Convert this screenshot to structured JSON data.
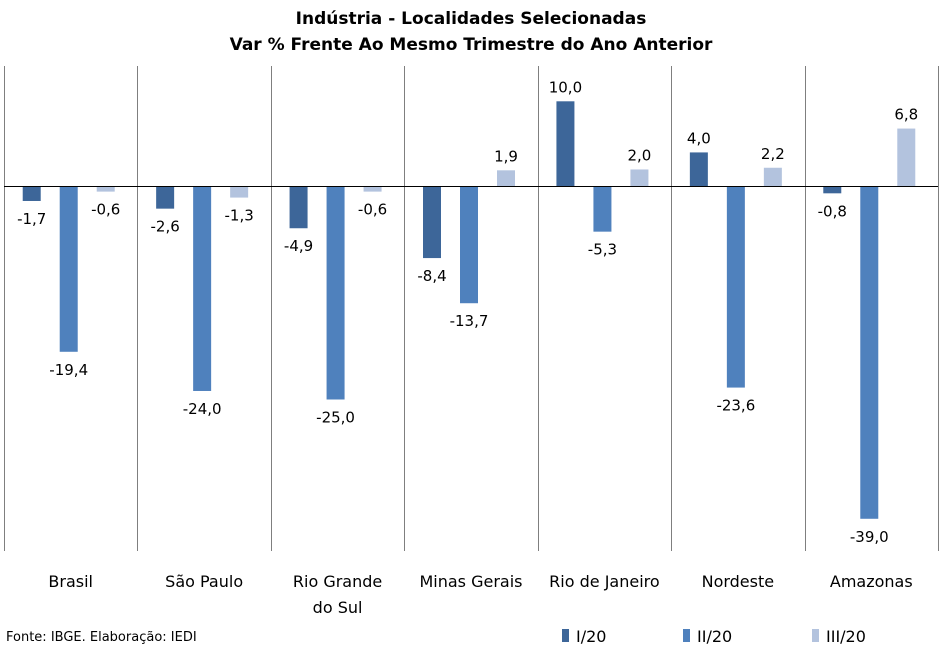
{
  "chart_data": {
    "type": "bar",
    "title": "Indústria - Localidades Selecionadas",
    "subtitle": "Var % Frente Ao Mesmo Trimestre do Ano Anterior",
    "categories": [
      "Brasil",
      "São Paulo",
      "Rio Grande do Sul",
      "Minas Gerais",
      "Rio de Janeiro",
      "Nordeste",
      "Amazonas"
    ],
    "category_lines": [
      [
        "Brasil"
      ],
      [
        "São Paulo"
      ],
      [
        "Rio Grande",
        "do Sul"
      ],
      [
        "Minas Gerais"
      ],
      [
        "Rio de Janeiro"
      ],
      [
        "Nordeste"
      ],
      [
        "Amazonas"
      ]
    ],
    "series": [
      {
        "name": "I/20",
        "color": "#3d6699",
        "values": [
          -1.7,
          -2.6,
          -4.9,
          -8.4,
          10.0,
          4.0,
          -0.8
        ],
        "labels": [
          "-1,7",
          "-2,6",
          "-4,9",
          "-8,4",
          "10,0",
          "4,0",
          "-0,8"
        ]
      },
      {
        "name": "II/20",
        "color": "#4f81bd",
        "values": [
          -19.4,
          -24.0,
          -25.0,
          -13.7,
          -5.3,
          -23.6,
          -39.0
        ],
        "labels": [
          "-19,4",
          "-24,0",
          "-25,0",
          "-13,7",
          "-5,3",
          "-23,6",
          "-39,0"
        ]
      },
      {
        "name": "III/20",
        "color": "#b3c3de",
        "values": [
          -0.6,
          -1.3,
          -0.6,
          1.9,
          2.0,
          2.2,
          6.8
        ],
        "labels": [
          "-0,6",
          "-1,3",
          "-0,6",
          "1,9",
          "2,0",
          "2,2",
          "6,8"
        ]
      }
    ],
    "ylim": [
      -39,
      10
    ],
    "grid": false,
    "legend": "bottom-right"
  },
  "source_note": "Fonte: IBGE. Elaboração: IEDI"
}
